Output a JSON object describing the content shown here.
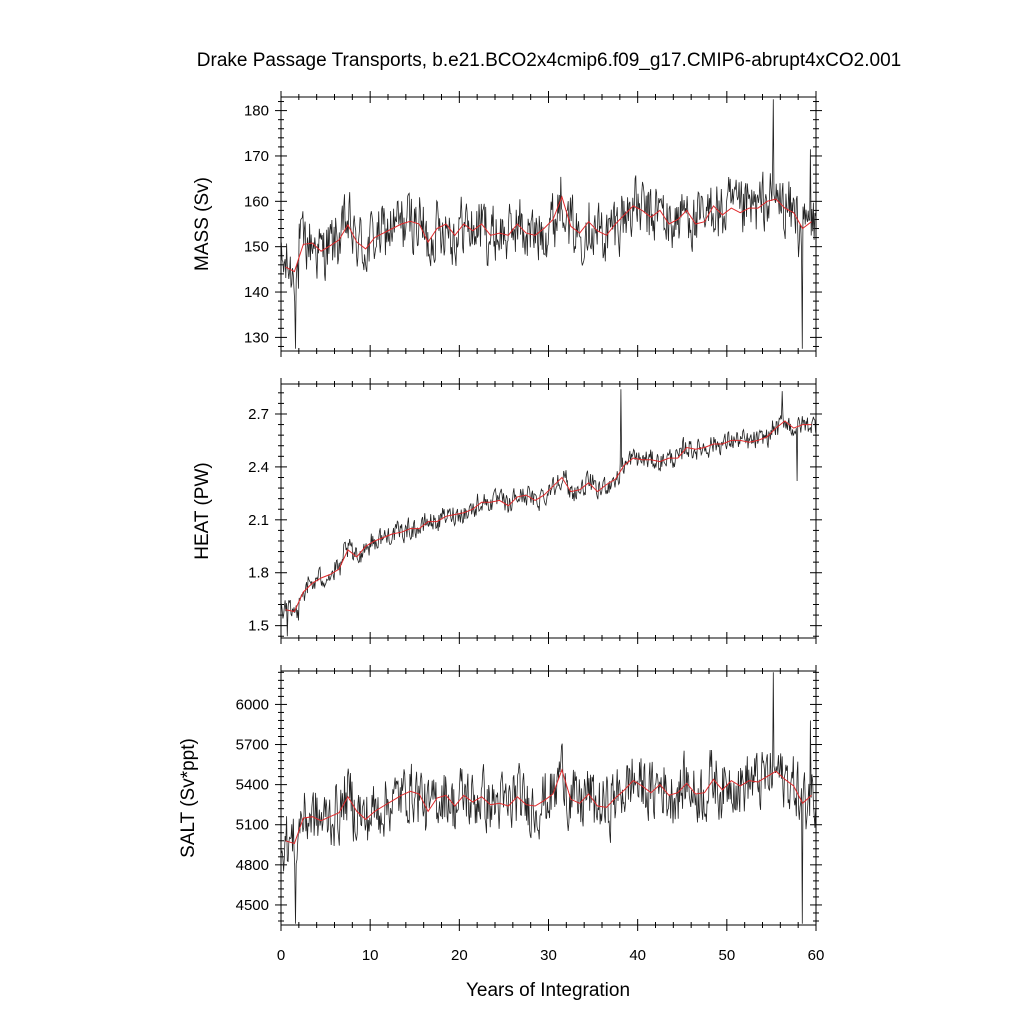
{
  "chart_data": {
    "type": "line",
    "title": "Drake Passage Transports, b.e21.BCO2x4cmip6.f09_g17.CMIP6-abrupt4xCO2.001",
    "xlabel": "Years of Integration",
    "xlim": [
      0,
      60
    ],
    "xticks": [
      0,
      10,
      20,
      30,
      40,
      50,
      60
    ],
    "xtick_labels": [
      "0",
      "10",
      "20",
      "30",
      "40",
      "50",
      "60"
    ],
    "colors": {
      "raw": "#222222",
      "mean": "#e0292b"
    },
    "panels": [
      {
        "name": "mass",
        "ylabel": "MASS (Sv)",
        "ylim": [
          127,
          183
        ],
        "yticks": [
          130,
          140,
          150,
          160,
          170,
          180
        ],
        "ytick_labels": [
          "130",
          "140",
          "150",
          "160",
          "170",
          "180"
        ],
        "series": [
          {
            "name": "annual_mean",
            "type": "line",
            "x": [
              0.5,
              1.5,
              2.5,
              3.5,
              4.5,
              5.5,
              6.5,
              7.5,
              8.5,
              9.5,
              10.5,
              11.5,
              12.5,
              13.5,
              14.5,
              15.5,
              16.5,
              17.5,
              18.5,
              19.5,
              20.5,
              21.5,
              22.5,
              23.5,
              24.5,
              25.5,
              26.5,
              27.5,
              28.5,
              29.5,
              30.5,
              31.5,
              32.5,
              33.5,
              34.5,
              35.5,
              36.5,
              37.5,
              38.5,
              39.5,
              40.5,
              41.5,
              42.5,
              43.5,
              44.5,
              45.5,
              46.5,
              47.5,
              48.5,
              49.5,
              50.5,
              51.5,
              52.5,
              53.5,
              54.5,
              55.5,
              56.5,
              57.5,
              58.5,
              59.5
            ],
            "y": [
              145.5,
              144.5,
              150.5,
              150.8,
              149.0,
              150.2,
              151.5,
              154.8,
              151.0,
              149.5,
              152.0,
              153.0,
              154.0,
              155.0,
              155.6,
              155.0,
              151.0,
              154.0,
              155.0,
              152.5,
              155.0,
              153.5,
              155.0,
              152.5,
              153.0,
              152.5,
              155.0,
              153.0,
              152.5,
              154.0,
              156.0,
              161.0,
              154.5,
              153.0,
              155.5,
              153.5,
              152.5,
              155.0,
              157.0,
              159.0,
              158.0,
              156.5,
              158.0,
              155.0,
              156.0,
              158.0,
              155.0,
              155.5,
              159.0,
              157.0,
              158.5,
              157.5,
              158.5,
              158.5,
              160.0,
              160.5,
              158.5,
              157.5,
              154.0,
              155.5
            ]
          },
          {
            "name": "monthly",
            "type": "line",
            "baseline": [
              145.5,
              144.5,
              150.5,
              150.8,
              149.0,
              150.2,
              151.5,
              154.8,
              151.0,
              149.5,
              152.0,
              153.0,
              154.0,
              155.0,
              155.6,
              155.0,
              151.0,
              154.0,
              155.0,
              152.5,
              155.0,
              153.5,
              155.0,
              152.5,
              153.0,
              152.5,
              155.0,
              153.0,
              152.5,
              154.0,
              156.0,
              161.0,
              154.5,
              153.0,
              155.5,
              153.5,
              152.5,
              155.0,
              157.0,
              159.0,
              158.0,
              156.5,
              158.0,
              155.0,
              156.0,
              158.0,
              155.0,
              155.5,
              159.0,
              157.0,
              158.5,
              157.5,
              158.5,
              158.5,
              160.0,
              160.5,
              158.5,
              157.5,
              154.0,
              155.5
            ],
            "amplitude": 8.5,
            "trend_per_year": 0,
            "spikes": [
              [
                19,
                127.5
              ],
              [
                662,
                182.5
              ],
              [
                701,
                127.5
              ],
              [
                712,
                171.5
              ]
            ]
          }
        ]
      },
      {
        "name": "heat",
        "ylabel": "HEAT (PW)",
        "ylim": [
          1.43,
          2.87
        ],
        "yticks": [
          1.5,
          1.8,
          2.1,
          2.4,
          2.7
        ],
        "ytick_labels": [
          "1.5",
          "1.8",
          "2.1",
          "2.4",
          "2.7"
        ],
        "series": [
          {
            "name": "annual_mean",
            "type": "line",
            "x": [
              0.5,
              1.5,
              2.5,
              3.5,
              4.5,
              5.5,
              6.5,
              7.5,
              8.5,
              9.5,
              10.5,
              11.5,
              12.5,
              13.5,
              14.5,
              15.5,
              16.5,
              17.5,
              18.5,
              19.5,
              20.5,
              21.5,
              22.5,
              23.5,
              24.5,
              25.5,
              26.5,
              27.5,
              28.5,
              29.5,
              30.5,
              31.5,
              32.5,
              33.5,
              34.5,
              35.5,
              36.5,
              37.5,
              38.5,
              39.5,
              40.5,
              41.5,
              42.5,
              43.5,
              44.5,
              45.5,
              46.5,
              47.5,
              48.5,
              49.5,
              50.5,
              51.5,
              52.5,
              53.5,
              54.5,
              55.5,
              56.5,
              57.5,
              58.5,
              59.5
            ],
            "y": [
              1.59,
              1.58,
              1.69,
              1.74,
              1.77,
              1.79,
              1.82,
              1.93,
              1.89,
              1.95,
              1.98,
              2.0,
              2.02,
              2.03,
              2.05,
              2.05,
              2.09,
              2.09,
              2.12,
              2.13,
              2.14,
              2.16,
              2.2,
              2.2,
              2.21,
              2.18,
              2.23,
              2.24,
              2.21,
              2.24,
              2.29,
              2.34,
              2.26,
              2.27,
              2.31,
              2.26,
              2.3,
              2.33,
              2.41,
              2.45,
              2.44,
              2.44,
              2.43,
              2.45,
              2.45,
              2.51,
              2.5,
              2.51,
              2.53,
              2.53,
              2.55,
              2.55,
              2.54,
              2.55,
              2.57,
              2.62,
              2.66,
              2.62,
              2.64,
              2.64
            ]
          },
          {
            "name": "monthly",
            "type": "line",
            "baseline": [
              1.59,
              1.58,
              1.69,
              1.74,
              1.77,
              1.79,
              1.82,
              1.93,
              1.89,
              1.95,
              1.98,
              2.0,
              2.02,
              2.03,
              2.05,
              2.05,
              2.09,
              2.09,
              2.12,
              2.13,
              2.14,
              2.16,
              2.2,
              2.2,
              2.21,
              2.18,
              2.23,
              2.24,
              2.21,
              2.24,
              2.29,
              2.34,
              2.26,
              2.27,
              2.31,
              2.26,
              2.3,
              2.33,
              2.41,
              2.45,
              2.44,
              2.44,
              2.43,
              2.45,
              2.45,
              2.51,
              2.5,
              2.51,
              2.53,
              2.53,
              2.55,
              2.55,
              2.54,
              2.55,
              2.57,
              2.62,
              2.66,
              2.62,
              2.64,
              2.64
            ],
            "amplitude": 0.075,
            "trend_per_year": 0,
            "spikes": [
              [
                8,
                1.44
              ],
              [
                457,
                2.84
              ],
              [
                674,
                2.83
              ],
              [
                694,
                2.32
              ]
            ]
          }
        ]
      },
      {
        "name": "salt",
        "ylabel": "SALT (Sv*ppt)",
        "ylim": [
          4350,
          6250
        ],
        "yticks": [
          4500,
          4800,
          5100,
          5400,
          5700,
          6000
        ],
        "ytick_labels": [
          "4500",
          "4800",
          "5100",
          "5400",
          "5700",
          "6000"
        ],
        "series": [
          {
            "name": "annual_mean",
            "type": "line",
            "x": [
              0.5,
              1.5,
              2.5,
              3.5,
              4.5,
              5.5,
              6.5,
              7.5,
              8.5,
              9.5,
              10.5,
              11.5,
              12.5,
              13.5,
              14.5,
              15.5,
              16.5,
              17.5,
              18.5,
              19.5,
              20.5,
              21.5,
              22.5,
              23.5,
              24.5,
              25.5,
              26.5,
              27.5,
              28.5,
              29.5,
              30.5,
              31.5,
              32.5,
              33.5,
              34.5,
              35.5,
              36.5,
              37.5,
              38.5,
              39.5,
              40.5,
              41.5,
              42.5,
              43.5,
              44.5,
              45.5,
              46.5,
              47.5,
              48.5,
              49.5,
              50.5,
              51.5,
              52.5,
              53.5,
              54.5,
              55.5,
              56.5,
              57.5,
              58.5,
              59.5
            ],
            "y": [
              4980,
              4960,
              5150,
              5160,
              5130,
              5160,
              5190,
              5310,
              5200,
              5140,
              5200,
              5240,
              5280,
              5320,
              5350,
              5330,
              5200,
              5300,
              5320,
              5240,
              5320,
              5270,
              5310,
              5250,
              5260,
              5240,
              5310,
              5250,
              5240,
              5280,
              5330,
              5510,
              5290,
              5260,
              5330,
              5240,
              5230,
              5300,
              5360,
              5430,
              5390,
              5340,
              5400,
              5320,
              5340,
              5410,
              5330,
              5340,
              5440,
              5360,
              5430,
              5390,
              5430,
              5420,
              5460,
              5500,
              5440,
              5390,
              5260,
              5320
            ]
          },
          {
            "name": "monthly",
            "type": "line",
            "baseline": [
              4980,
              4960,
              5150,
              5160,
              5130,
              5160,
              5190,
              5310,
              5200,
              5140,
              5200,
              5240,
              5280,
              5320,
              5350,
              5330,
              5200,
              5300,
              5320,
              5240,
              5320,
              5270,
              5310,
              5250,
              5260,
              5240,
              5310,
              5250,
              5240,
              5280,
              5330,
              5510,
              5290,
              5260,
              5330,
              5240,
              5230,
              5300,
              5360,
              5430,
              5390,
              5340,
              5400,
              5320,
              5340,
              5410,
              5330,
              5340,
              5440,
              5360,
              5430,
              5390,
              5430,
              5420,
              5460,
              5500,
              5440,
              5390,
              5260,
              5320
            ],
            "amplitude": 290,
            "trend_per_year": 0,
            "spikes": [
              [
                19,
                4360
              ],
              [
                662,
                6240
              ],
              [
                701,
                4360
              ],
              [
                712,
                5880
              ]
            ]
          }
        ]
      }
    ]
  }
}
